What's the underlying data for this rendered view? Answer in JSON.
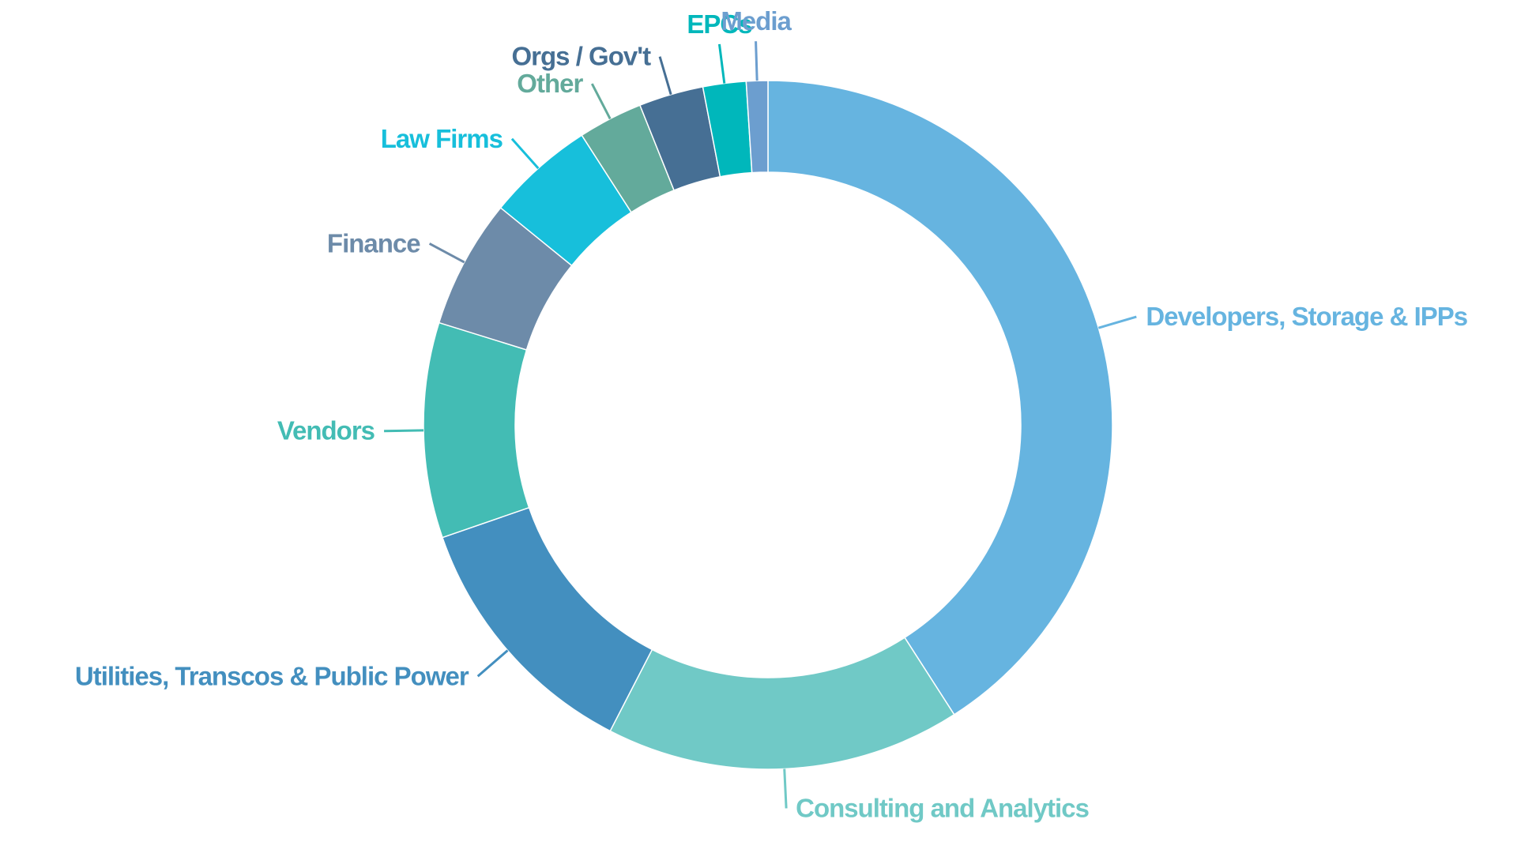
{
  "chart_data": {
    "type": "pie",
    "variant": "donut",
    "title": "",
    "legend": "none",
    "unit": "percent",
    "slices": [
      {
        "label": "Developers, Storage & IPPs",
        "value": 40.5,
        "color": "#66B4E0"
      },
      {
        "label": "Consulting and Analytics",
        "value": 16.5,
        "color": "#70C9C6"
      },
      {
        "label": "Utilities, Transcos & Public Power",
        "value": 12.0,
        "color": "#438FBF"
      },
      {
        "label": "Vendors",
        "value": 10.0,
        "color": "#43BCB4"
      },
      {
        "label": "Finance",
        "value": 6.0,
        "color": "#6D8BA9"
      },
      {
        "label": "Law Firms",
        "value": 5.0,
        "color": "#17BFDB"
      },
      {
        "label": "Other",
        "value": 3.0,
        "color": "#63AA9B"
      },
      {
        "label": "Orgs / Gov't",
        "value": 3.0,
        "color": "#466F94"
      },
      {
        "label": "EPCs",
        "value": 2.0,
        "color": "#00B7BB"
      },
      {
        "label": "Media",
        "value": 1.0,
        "color": "#6C9ECF"
      }
    ]
  }
}
